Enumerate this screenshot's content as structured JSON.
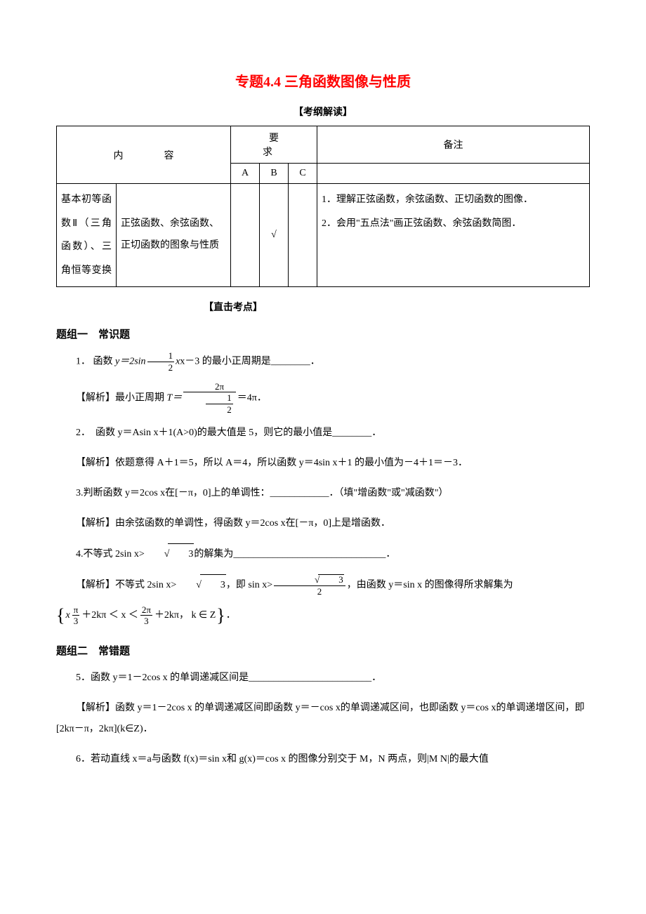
{
  "title": "专题4.4 三角函数图像与性质",
  "title_color": "#ff0000",
  "section1_label": "【考纲解读】",
  "syllabus": {
    "header_content": "内　容",
    "header_req": "要　求",
    "header_note": "备注",
    "req_cols": [
      "A",
      "B",
      "C"
    ],
    "row": {
      "c1": "基本初等函数Ⅱ（三角函数）、三角恒等变换",
      "c2": "正弦函数、余弦函数、正切函数的图象与性质",
      "a": "",
      "b": "√",
      "c": "",
      "note_items": [
        "1．理解正弦函数，余弦函数、正切函数的图像．",
        "2．会用\"五点法\"画正弦函数、余弦函数简图．"
      ]
    }
  },
  "section2_label": "【直击考点】",
  "group1": "题组一　常识题",
  "q1": {
    "num": "1．",
    "pre": "函数 ",
    "fn": "y＝2sin",
    "frac_num": "1",
    "frac_den": "2",
    "mid": "x－3 的最小正周期是",
    "blank": "________．"
  },
  "a1": {
    "label": "【解析】最小正周期 ",
    "t": "T＝",
    "top": "2π",
    "bot_num": "1",
    "bot_den": "2",
    "eq": "＝4π．"
  },
  "q2": "2．　函数 y＝Asin x＋1(A>0)的最大值是 5，则它的最小值是________．",
  "a2": "【解析】依题意得 A＋1＝5，所以 A＝4，所以函数 y＝4sin x＋1 的最小值为－4＋1＝－3．",
  "q3": "3.判断函数 y＝2cos x在[－π，0]上的单调性：____________．（填\"增函数\"或\"减函数\"）",
  "a3": "【解析】由余弦函数的单调性，得函数 y＝2cos x在[－π，0]上是增函数．",
  "q4": {
    "pre": "4.不等式 2sin x>",
    "r_val": "3",
    "post": "的解集为_______________________________．"
  },
  "a4": {
    "pre": "【解析】不等式 2sin x>",
    "r1": "3",
    "mid": "，即 sin x>",
    "frac_top_r": "3",
    "frac_bot": "2",
    "tail": "，由函数 y＝sin x 的图像得所求解集为"
  },
  "a4_set": {
    "p1": "x",
    "f1_num": "π",
    "f1_den": "3",
    "p2": "＋2kπ ＜ x ＜",
    "f2_num": "2π",
    "f2_den": "3",
    "p3": "＋2kπ， k ∈ Z",
    "period": "．"
  },
  "group2": "题组二　常错题",
  "q5": "5．函数 y＝1－2cos x 的单调递减区间是_________________________．",
  "a5": "【解析】函数 y＝1－2cos x 的单调递减区间即函数 y＝－cos x的单调递减区间，也即函数 y＝cos x的单调递增区间，即[2kπ－π，2kπ](k∈Z)．",
  "q6": "6．若动直线 x＝a与函数 f(x)＝sin x和 g(x)＝cos x 的图像分别交于 M，N 两点，则|M N|的最大值"
}
